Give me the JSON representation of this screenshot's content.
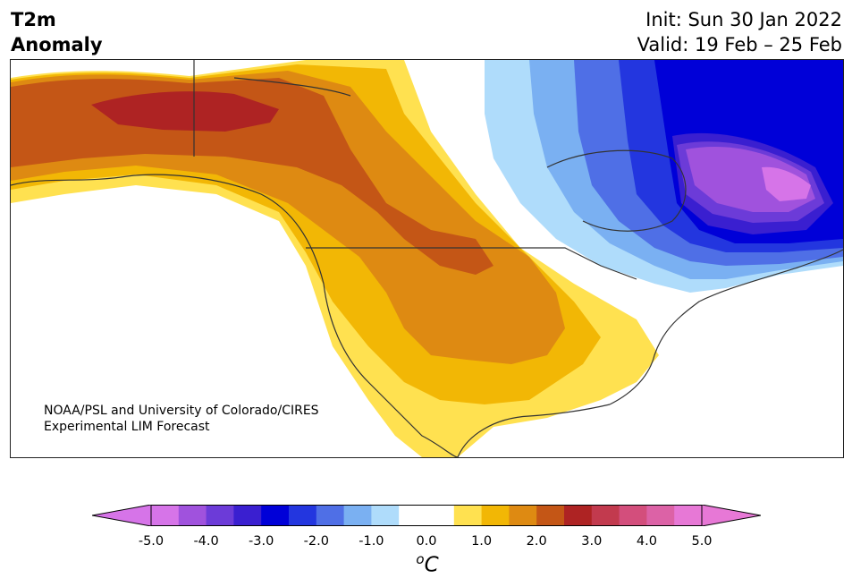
{
  "header": {
    "variable": "T2m",
    "quantity": "Anomaly",
    "init": "Init: Sun 30 Jan 2022",
    "valid": "Valid: 19 Feb – 25 Feb"
  },
  "credit": {
    "line1": "NOAA/PSL and University of Colorado/CIRES",
    "line2": "Experimental LIM Forecast"
  },
  "colorbar": {
    "unit_symbol": "C",
    "unit_prefix": "o",
    "colors": [
      "#d674e8",
      "#a052dd",
      "#6c3bd8",
      "#3a1fd0",
      "#0000d8",
      "#2336df",
      "#4f6fe6",
      "#7ab0f2",
      "#afdcfb",
      "#ffffff",
      "#ffffff",
      "#ffe150",
      "#f2b705",
      "#de8a12",
      "#c45616",
      "#ae2323",
      "#c23a4e",
      "#d34e7c",
      "#dc62a6",
      "#e778d6"
    ],
    "ticks": [
      "-5.0",
      "-4.0",
      "-3.0",
      "-2.0",
      "-1.0",
      "0.0",
      "1.0",
      "2.0",
      "3.0",
      "4.0",
      "5.0"
    ],
    "min_color": "#d674e8",
    "max_color": "#e778d6"
  },
  "map": {
    "ocean_color": "#ffffff",
    "land_outline_color": "#333333"
  }
}
